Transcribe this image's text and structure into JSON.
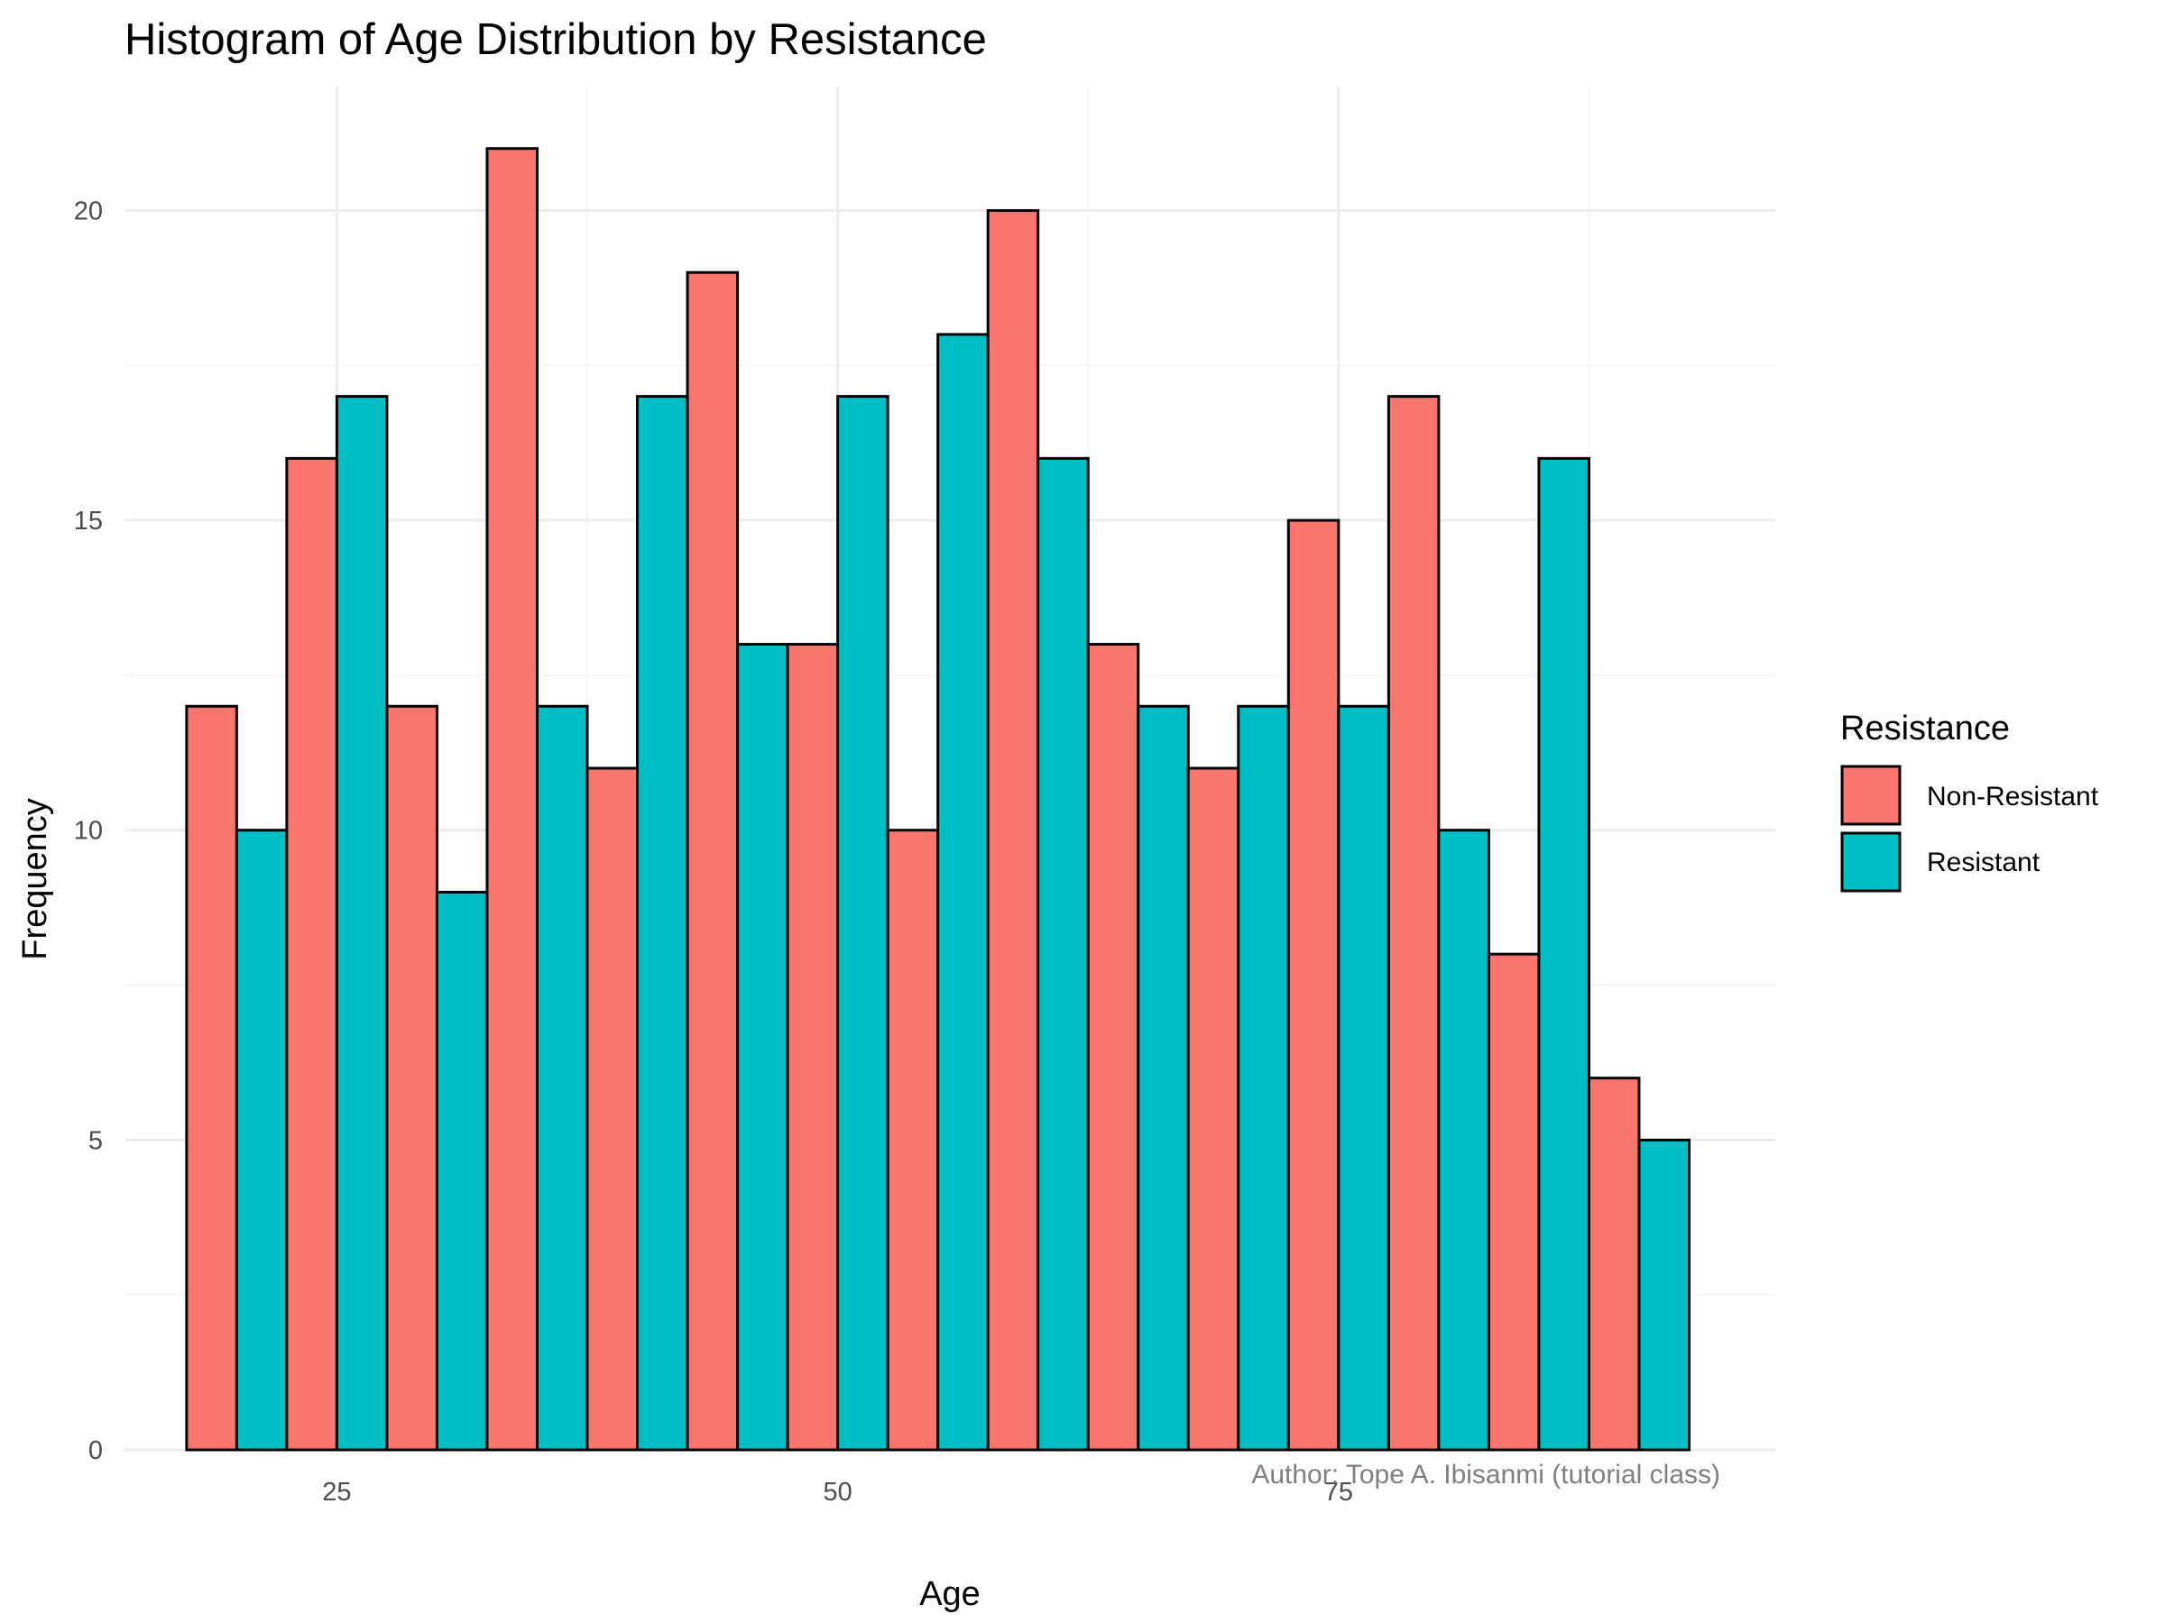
{
  "chart_data": {
    "type": "bar",
    "title": "Histogram of Age Distribution by Resistance",
    "xlabel": "Age",
    "ylabel": "Frequency",
    "caption": "Author: Tope A. Ibisanmi (tutorial class)",
    "x_ticks": [
      "25",
      "50",
      "75"
    ],
    "y_ticks": [
      "0",
      "5",
      "10",
      "15",
      "20"
    ],
    "xlim": [
      14.4,
      96.8
    ],
    "ylim": [
      0,
      22
    ],
    "grid": true,
    "position": "dodge",
    "legend": {
      "title": "Resistance",
      "position": "right",
      "entries": [
        "Non-Resistant",
        "Resistant"
      ]
    },
    "bin_width": 5,
    "bin_centers": [
      20,
      25,
      30,
      35,
      40,
      45,
      50,
      55,
      60,
      65,
      70,
      75,
      80,
      85,
      90
    ],
    "series": [
      {
        "name": "Non-Resistant",
        "color": "#F8766D",
        "values": [
          12,
          16,
          12,
          21,
          11,
          19,
          13,
          10,
          20,
          13,
          11,
          15,
          17,
          8,
          6
        ]
      },
      {
        "name": "Resistant",
        "color": "#00BFC4",
        "values": [
          10,
          17,
          9,
          12,
          17,
          13,
          17,
          18,
          16,
          12,
          12,
          12,
          10,
          16,
          5
        ]
      }
    ]
  }
}
